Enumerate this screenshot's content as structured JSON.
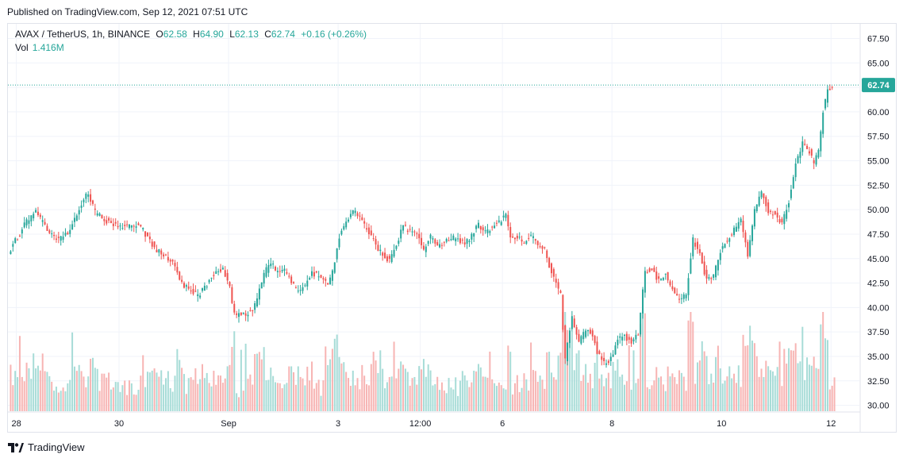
{
  "header": {
    "published": "Published on TradingView.com, Sep 12, 2021 07:51 UTC"
  },
  "legend": {
    "symbol": "AVAX / TetherUS, 1h, BINANCE",
    "open_label": "O",
    "open": "62.58",
    "high_label": "H",
    "high": "64.90",
    "low_label": "L",
    "low": "62.13",
    "close_label": "C",
    "close": "62.74",
    "change": "+0.16 (+0.26%)",
    "vol_label": "Vol",
    "vol": "1.416M"
  },
  "brand": {
    "name": "TradingView",
    "logo_icon": "tradingview-logo-icon"
  },
  "colors": {
    "up": "#26a69a",
    "down": "#ef5350",
    "up_volume": "#a7dcd7",
    "down_volume": "#f7b4b3",
    "grid": "#f0f3fa",
    "price_badge": "#26a69a"
  },
  "chart_data": {
    "type": "candlestick",
    "symbol": "AVAX / TetherUS",
    "interval": "1h",
    "exchange": "BINANCE",
    "ylim": [
      29.4,
      69.0
    ],
    "y_ticks": [
      "67.50",
      "65.00",
      "62.50",
      "60.00",
      "57.50",
      "55.00",
      "52.50",
      "50.00",
      "47.50",
      "45.00",
      "42.50",
      "40.00",
      "37.50",
      "35.00",
      "32.50",
      "30.00"
    ],
    "x_ticks": [
      {
        "label": "28",
        "hour": 3
      },
      {
        "label": "30",
        "hour": 48
      },
      {
        "label": "Sep",
        "hour": 96
      },
      {
        "label": "3",
        "hour": 144
      },
      {
        "label": "12:00",
        "hour": 180
      },
      {
        "label": "6",
        "hour": 216
      },
      {
        "label": "8",
        "hour": 264
      },
      {
        "label": "10",
        "hour": 312
      },
      {
        "label": "12",
        "hour": 360
      }
    ],
    "last_price": "62.74",
    "grid": true,
    "volume_overlay": true,
    "price_path": [
      [
        0,
        45.6
      ],
      [
        3,
        46.8
      ],
      [
        8,
        48.8
      ],
      [
        12,
        49.7
      ],
      [
        15,
        48.7
      ],
      [
        18,
        47.4
      ],
      [
        22,
        46.9
      ],
      [
        26,
        47.6
      ],
      [
        29,
        48.9
      ],
      [
        32,
        50.7
      ],
      [
        35,
        51.7
      ],
      [
        38,
        49.7
      ],
      [
        42,
        49.0
      ],
      [
        46,
        48.5
      ],
      [
        50,
        48.3
      ],
      [
        54,
        48.4
      ],
      [
        58,
        48.2
      ],
      [
        61,
        47.2
      ],
      [
        64,
        46.1
      ],
      [
        68,
        45.3
      ],
      [
        72,
        44.6
      ],
      [
        76,
        42.4
      ],
      [
        80,
        41.9
      ],
      [
        83,
        41.1
      ],
      [
        86,
        42.1
      ],
      [
        90,
        43.4
      ],
      [
        94,
        43.8
      ],
      [
        97,
        42.1
      ],
      [
        99,
        39.2
      ],
      [
        103,
        39.3
      ],
      [
        107,
        39.6
      ],
      [
        109,
        40.9
      ],
      [
        112,
        43.4
      ],
      [
        115,
        44.7
      ],
      [
        117,
        43.8
      ],
      [
        121,
        43.9
      ],
      [
        124,
        42.6
      ],
      [
        127,
        41.6
      ],
      [
        130,
        42.3
      ],
      [
        133,
        43.5
      ],
      [
        137,
        43.2
      ],
      [
        140,
        42.1
      ],
      [
        142,
        43.7
      ],
      [
        145,
        47.2
      ],
      [
        148,
        48.8
      ],
      [
        151,
        49.9
      ],
      [
        154,
        49.2
      ],
      [
        157,
        48.0
      ],
      [
        160,
        46.9
      ],
      [
        163,
        45.6
      ],
      [
        167,
        44.8
      ],
      [
        170,
        46.4
      ],
      [
        173,
        48.3
      ],
      [
        176,
        47.7
      ],
      [
        179,
        47.4
      ],
      [
        182,
        45.9
      ],
      [
        185,
        47.2
      ],
      [
        188,
        46.4
      ],
      [
        191,
        46.6
      ],
      [
        194,
        47.1
      ],
      [
        197,
        47.0
      ],
      [
        200,
        46.5
      ],
      [
        203,
        47.4
      ],
      [
        206,
        48.4
      ],
      [
        209,
        47.7
      ],
      [
        212,
        48.3
      ],
      [
        215,
        48.7
      ],
      [
        218,
        49.4
      ],
      [
        220,
        47.4
      ],
      [
        223,
        47.0
      ],
      [
        226,
        46.8
      ],
      [
        229,
        47.3
      ],
      [
        232,
        46.4
      ],
      [
        235,
        45.9
      ],
      [
        237,
        44.3
      ],
      [
        240,
        42.7
      ],
      [
        242,
        41.2
      ],
      [
        244,
        34.8
      ],
      [
        247,
        38.9
      ],
      [
        250,
        36.4
      ],
      [
        253,
        37.7
      ],
      [
        256,
        37.3
      ],
      [
        258,
        35.5
      ],
      [
        261,
        34.4
      ],
      [
        264,
        34.7
      ],
      [
        267,
        36.7
      ],
      [
        270,
        37.1
      ],
      [
        273,
        36.4
      ],
      [
        276,
        37.3
      ],
      [
        279,
        43.7
      ],
      [
        282,
        43.8
      ],
      [
        285,
        42.7
      ],
      [
        288,
        43.4
      ],
      [
        291,
        41.8
      ],
      [
        294,
        40.8
      ],
      [
        297,
        41.4
      ],
      [
        300,
        46.9
      ],
      [
        303,
        45.6
      ],
      [
        306,
        42.7
      ],
      [
        309,
        43.2
      ],
      [
        312,
        45.8
      ],
      [
        315,
        46.9
      ],
      [
        318,
        47.9
      ],
      [
        321,
        48.9
      ],
      [
        324,
        45.4
      ],
      [
        327,
        49.9
      ],
      [
        330,
        51.7
      ],
      [
        333,
        49.9
      ],
      [
        336,
        49.4
      ],
      [
        339,
        48.6
      ],
      [
        342,
        50.9
      ],
      [
        345,
        54.7
      ],
      [
        348,
        56.9
      ],
      [
        351,
        55.9
      ],
      [
        353,
        54.7
      ],
      [
        355,
        55.9
      ],
      [
        357,
        60.1
      ],
      [
        359,
        62.2
      ],
      [
        361,
        62.74
      ]
    ]
  }
}
